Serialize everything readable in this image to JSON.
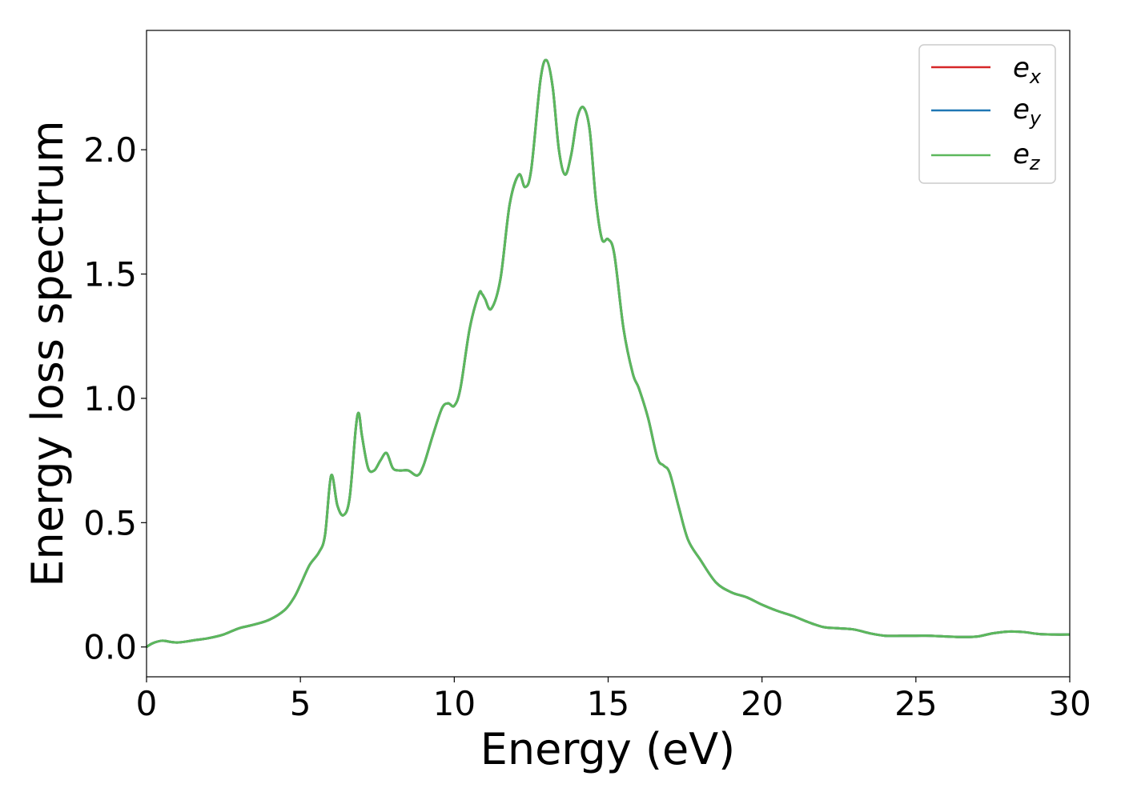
{
  "chart_data": {
    "type": "line",
    "title": "",
    "xlabel": "Energy (eV)",
    "ylabel": "Energy loss spectrum",
    "xlim": [
      0,
      30
    ],
    "ylim": [
      -0.12,
      2.48
    ],
    "xticks": [
      0,
      5,
      10,
      15,
      20,
      25,
      30
    ],
    "xtick_labels": [
      "0",
      "5",
      "10",
      "15",
      "20",
      "25",
      "30"
    ],
    "yticks": [
      0.0,
      0.5,
      1.0,
      1.5,
      2.0
    ],
    "ytick_labels": [
      "0.0",
      "0.5",
      "1.0",
      "1.5",
      "2.0"
    ],
    "grid": false,
    "legend": {
      "placement": "top-right",
      "entries": [
        {
          "base": "e",
          "sub": "x"
        },
        {
          "base": "e",
          "sub": "y"
        },
        {
          "base": "e",
          "sub": "z"
        }
      ]
    },
    "x": [
      0,
      0.2,
      0.5,
      0.8,
      1.0,
      1.3,
      1.6,
      2.0,
      2.5,
      3.0,
      3.5,
      4.0,
      4.5,
      4.8,
      5.0,
      5.3,
      5.6,
      5.8,
      6.0,
      6.2,
      6.4,
      6.6,
      6.8,
      6.9,
      7.0,
      7.2,
      7.4,
      7.6,
      7.8,
      8.0,
      8.2,
      8.5,
      8.8,
      9.0,
      9.3,
      9.6,
      9.8,
      10.0,
      10.2,
      10.5,
      10.8,
      10.9,
      11.0,
      11.2,
      11.5,
      11.8,
      12.1,
      12.3,
      12.5,
      12.8,
      13.0,
      13.2,
      13.4,
      13.6,
      13.8,
      14.0,
      14.2,
      14.4,
      14.6,
      14.8,
      15.0,
      15.2,
      15.5,
      15.8,
      16.0,
      16.3,
      16.6,
      16.8,
      17.0,
      17.3,
      17.6,
      18.0,
      18.5,
      19.0,
      19.5,
      20.0,
      20.5,
      21.0,
      21.5,
      22.0,
      22.5,
      23.0,
      23.5,
      24.0,
      24.5,
      25.0,
      25.5,
      26.0,
      26.5,
      27.0,
      27.5,
      28.0,
      28.5,
      29.0,
      29.5,
      30.0
    ],
    "series": [
      {
        "name": "",
        "color": "#d62728",
        "values": [
          0.0,
          0.015,
          0.025,
          0.02,
          0.018,
          0.022,
          0.028,
          0.035,
          0.05,
          0.075,
          0.09,
          0.11,
          0.15,
          0.2,
          0.25,
          0.33,
          0.38,
          0.45,
          0.69,
          0.57,
          0.53,
          0.6,
          0.88,
          0.94,
          0.85,
          0.72,
          0.71,
          0.75,
          0.78,
          0.72,
          0.71,
          0.71,
          0.69,
          0.73,
          0.85,
          0.96,
          0.98,
          0.97,
          1.04,
          1.28,
          1.42,
          1.42,
          1.4,
          1.36,
          1.48,
          1.78,
          1.9,
          1.85,
          1.92,
          2.28,
          2.36,
          2.25,
          2.0,
          1.9,
          1.98,
          2.13,
          2.17,
          2.08,
          1.8,
          1.64,
          1.64,
          1.58,
          1.28,
          1.1,
          1.04,
          0.92,
          0.76,
          0.73,
          0.7,
          0.56,
          0.43,
          0.35,
          0.26,
          0.22,
          0.2,
          0.17,
          0.145,
          0.125,
          0.1,
          0.08,
          0.075,
          0.07,
          0.055,
          0.045,
          0.045,
          0.045,
          0.045,
          0.042,
          0.04,
          0.042,
          0.055,
          0.062,
          0.06,
          0.052,
          0.05,
          0.05
        ]
      },
      {
        "name": "",
        "color": "#1f77b4",
        "values": [
          0.0,
          0.015,
          0.025,
          0.02,
          0.018,
          0.022,
          0.028,
          0.035,
          0.05,
          0.075,
          0.09,
          0.11,
          0.15,
          0.2,
          0.25,
          0.33,
          0.38,
          0.45,
          0.69,
          0.57,
          0.53,
          0.6,
          0.88,
          0.94,
          0.85,
          0.72,
          0.71,
          0.75,
          0.78,
          0.72,
          0.71,
          0.71,
          0.69,
          0.73,
          0.85,
          0.96,
          0.98,
          0.97,
          1.04,
          1.28,
          1.42,
          1.42,
          1.4,
          1.36,
          1.48,
          1.78,
          1.9,
          1.85,
          1.92,
          2.28,
          2.36,
          2.25,
          2.0,
          1.9,
          1.98,
          2.13,
          2.17,
          2.08,
          1.8,
          1.64,
          1.64,
          1.58,
          1.28,
          1.1,
          1.04,
          0.92,
          0.76,
          0.73,
          0.7,
          0.56,
          0.43,
          0.35,
          0.26,
          0.22,
          0.2,
          0.17,
          0.145,
          0.125,
          0.1,
          0.08,
          0.075,
          0.07,
          0.055,
          0.045,
          0.045,
          0.045,
          0.045,
          0.042,
          0.04,
          0.042,
          0.055,
          0.062,
          0.06,
          0.052,
          0.05,
          0.05
        ]
      },
      {
        "name": "",
        "color": "#5cb85c",
        "values": [
          0.0,
          0.015,
          0.025,
          0.02,
          0.018,
          0.022,
          0.028,
          0.035,
          0.05,
          0.075,
          0.09,
          0.11,
          0.15,
          0.2,
          0.25,
          0.33,
          0.38,
          0.45,
          0.69,
          0.57,
          0.53,
          0.6,
          0.88,
          0.94,
          0.85,
          0.72,
          0.71,
          0.75,
          0.78,
          0.72,
          0.71,
          0.71,
          0.69,
          0.73,
          0.85,
          0.96,
          0.98,
          0.97,
          1.04,
          1.28,
          1.42,
          1.42,
          1.4,
          1.36,
          1.48,
          1.78,
          1.9,
          1.85,
          1.92,
          2.28,
          2.36,
          2.25,
          2.0,
          1.9,
          1.98,
          2.13,
          2.17,
          2.08,
          1.8,
          1.64,
          1.64,
          1.58,
          1.28,
          1.1,
          1.04,
          0.92,
          0.76,
          0.73,
          0.7,
          0.56,
          0.43,
          0.35,
          0.26,
          0.22,
          0.2,
          0.17,
          0.145,
          0.125,
          0.1,
          0.08,
          0.075,
          0.07,
          0.055,
          0.045,
          0.045,
          0.045,
          0.045,
          0.042,
          0.04,
          0.042,
          0.055,
          0.062,
          0.06,
          0.052,
          0.05,
          0.05
        ]
      }
    ]
  }
}
